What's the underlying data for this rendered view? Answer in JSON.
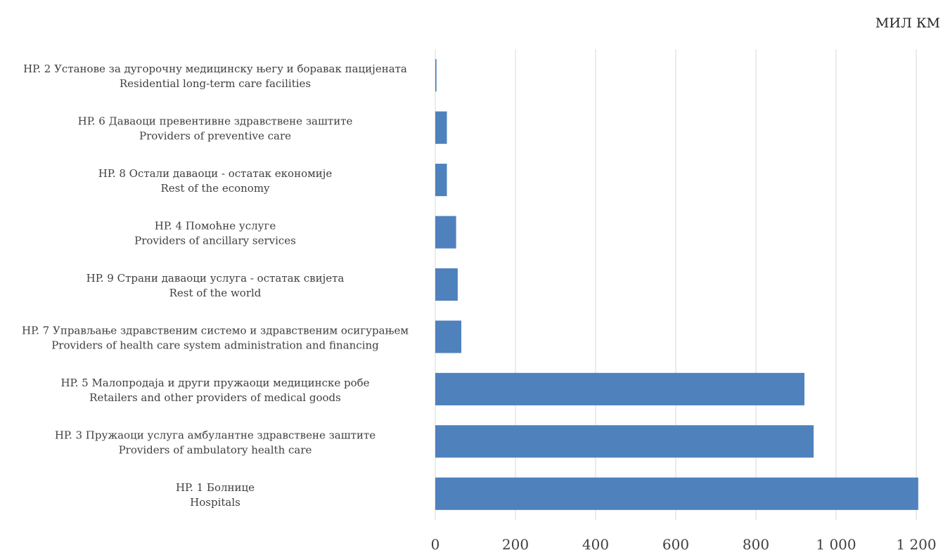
{
  "unit_label": "МИЛ КМ",
  "chart_data": {
    "type": "bar",
    "orientation": "horizontal",
    "categories": [
      {
        "line1": "HP. 2  Установе за дугорочну медицинску његу и боравак пацијената",
        "line2": "Residential long-term care facilities"
      },
      {
        "line1": "HP. 6 Даваоци превентивне здравствене заштите",
        "line2": "Providers of preventive care"
      },
      {
        "line1": "HP. 8 Остали даваоци - остатак економије",
        "line2": "Rest of the economy"
      },
      {
        "line1": "HP. 4  Помоћне услуге",
        "line2": "Providers of ancillary services"
      },
      {
        "line1": "HP. 9 Страни даваоци услуга - остатак свијета",
        "line2": "Rest of the world"
      },
      {
        "line1": "HP. 7 Управљање здравственим системо и здравственим осигурањем",
        "line2": "Providers of health care system administration and financing"
      },
      {
        "line1": "HP. 5 Малопродаја и други пружаоци медицинске робе",
        "line2": "Retailers and other providers of medical goods"
      },
      {
        "line1": "HP. 3  Пружаоци услуга амбулантне здравствене заштите",
        "line2": "Providers of ambulatory health care"
      },
      {
        "line1": "HP. 1  Болнице",
        "line2": "Hospitals"
      }
    ],
    "values": [
      3,
      29,
      29,
      52,
      56,
      65,
      921,
      944,
      1205
    ],
    "xlim": [
      0,
      1200
    ],
    "x_ticks": [
      0,
      200,
      400,
      600,
      800,
      1000,
      1200
    ],
    "x_tick_labels": [
      "0",
      "200",
      "400",
      "600",
      "800",
      "1 000",
      "1 200"
    ],
    "grid": "vertical",
    "bar_color": "#4F81BD",
    "grid_color": "#D9D9D9"
  }
}
